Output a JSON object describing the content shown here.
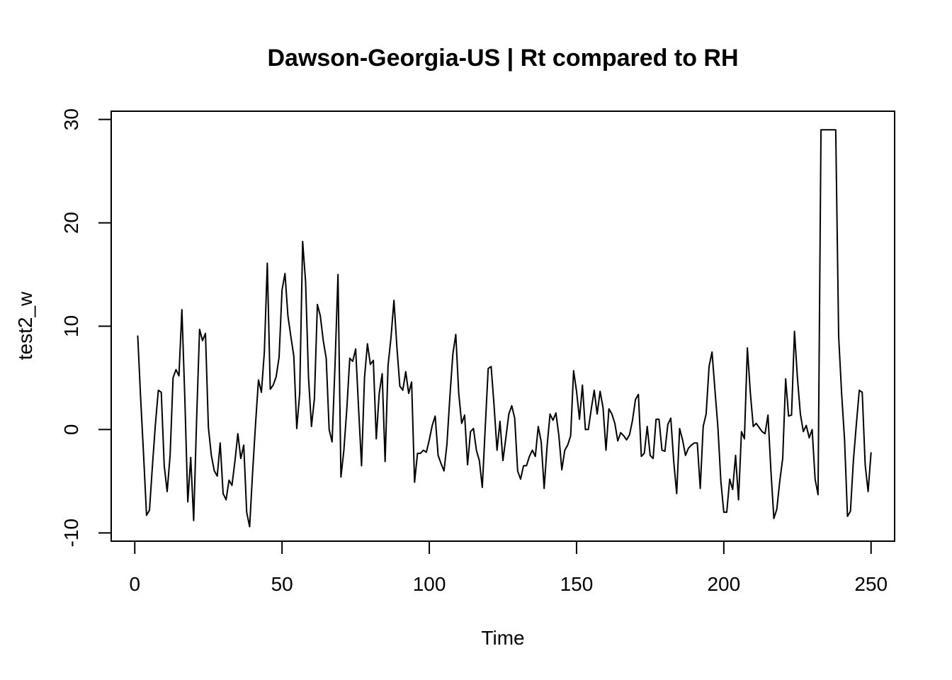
{
  "chart_data": {
    "type": "line",
    "title": "Dawson-Georgia-US | Rt compared to RH",
    "xlabel": "Time",
    "ylabel": "test2_w",
    "xlim": [
      -8,
      258
    ],
    "ylim": [
      -10.8,
      30.8
    ],
    "xticks": [
      0,
      50,
      100,
      150,
      200,
      250
    ],
    "yticks": [
      -10,
      0,
      10,
      20,
      30
    ],
    "grid": false,
    "legend": "none",
    "line_color": "#000000",
    "series": [
      {
        "x_start": 1,
        "values": [
          9.1,
          3.0,
          -2.5,
          -8.3,
          -7.8,
          -3.5,
          0.5,
          3.8,
          3.6,
          -3.5,
          -6.0,
          -2.5,
          5.0,
          5.8,
          5.2,
          11.6,
          3.0,
          -7.0,
          -2.7,
          -8.8,
          1.0,
          9.7,
          8.6,
          9.3,
          0.2,
          -2.5,
          -4.0,
          -4.5,
          -1.3,
          -6.2,
          -6.8,
          -4.9,
          -5.4,
          -3.1,
          -0.4,
          -2.8,
          -1.5,
          -8.0,
          -9.4,
          -4.2,
          0.5,
          4.8,
          3.6,
          7.5,
          16.1,
          3.9,
          4.3,
          5.1,
          7.0,
          13.5,
          15.1,
          11.0,
          9.0,
          7.1,
          0.1,
          3.5,
          18.2,
          14.3,
          5.0,
          0.3,
          3.0,
          12.1,
          11.0,
          8.6,
          6.9,
          0.0,
          -1.2,
          6.3,
          15.0,
          -4.6,
          -2.0,
          2.0,
          6.9,
          6.6,
          7.8,
          2.0,
          -3.5,
          5.0,
          8.3,
          6.3,
          6.7,
          -0.9,
          3.5,
          5.4,
          -3.1,
          6.2,
          8.9,
          12.5,
          8.0,
          4.2,
          3.8,
          5.6,
          3.5,
          4.6,
          -5.1,
          -2.3,
          -2.3,
          -2.0,
          -2.2,
          -1.0,
          0.4,
          1.3,
          -2.5,
          -3.3,
          -4.0,
          -1.4,
          3.2,
          7.3,
          9.2,
          3.5,
          0.6,
          1.4,
          -3.4,
          -0.2,
          0.1,
          -2.0,
          -3.0,
          -5.6,
          0.2,
          5.9,
          6.1,
          2.3,
          -2.0,
          0.8,
          -3.0,
          -0.8,
          1.5,
          2.3,
          1.1,
          -4.0,
          -4.8,
          -3.5,
          -3.5,
          -2.6,
          -2.0,
          -2.6,
          0.3,
          -1.2,
          -5.7,
          -1.6,
          1.5,
          0.9,
          1.6,
          -0.6,
          -3.9,
          -2.0,
          -1.5,
          -0.6,
          5.7,
          3.7,
          1.0,
          4.3,
          0.0,
          0.0,
          2.0,
          3.8,
          1.5,
          3.7,
          2.1,
          -2.0,
          2.0,
          1.5,
          0.6,
          -1.1,
          -0.3,
          -0.6,
          -1.0,
          -0.5,
          0.9,
          2.9,
          3.4,
          -2.6,
          -2.3,
          0.3,
          -2.5,
          -2.8,
          1.0,
          1.0,
          -2.0,
          -2.1,
          0.5,
          1.1,
          -3.1,
          -6.2,
          0.1,
          -1.0,
          -2.5,
          -1.8,
          -1.5,
          -1.3,
          -1.3,
          -5.7,
          0.3,
          1.5,
          6.1,
          7.5,
          3.8,
          0.2,
          -5.0,
          -8.0,
          -8.0,
          -4.8,
          -5.8,
          -2.5,
          -6.8,
          -0.2,
          -0.9,
          7.9,
          3.6,
          0.3,
          0.6,
          0.2,
          -0.2,
          -0.4,
          1.4,
          -4.0,
          -8.6,
          -7.7,
          -5.0,
          -2.8,
          4.9,
          1.3,
          1.4,
          9.5,
          5.0,
          1.5,
          -0.2,
          0.4,
          -0.8,
          0.0,
          -4.8,
          -6.3,
          29.0,
          29.0,
          29.0,
          29.0,
          29.0,
          29.0,
          9.0,
          3.5,
          -1.0,
          -8.4,
          -7.9,
          -3.0,
          0.5,
          3.8,
          3.6,
          -3.4,
          -6.0,
          -2.2
        ]
      }
    ]
  }
}
